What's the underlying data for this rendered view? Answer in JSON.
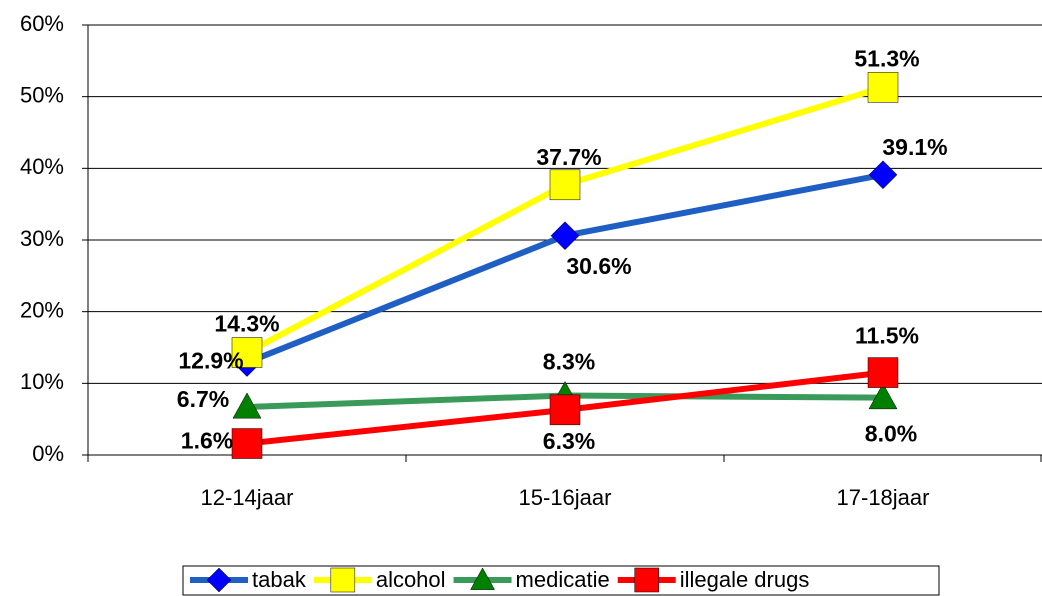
{
  "chart_data": {
    "type": "line",
    "categories": [
      "12-14jaar",
      "15-16jaar",
      "17-18jaar"
    ],
    "series": [
      {
        "name": "tabak",
        "color": "#1f5fc4",
        "marker_color": "#0000ff",
        "marker": "diamond",
        "values": [
          12.9,
          30.6,
          39.1
        ],
        "value_labels": [
          "12.9%",
          "30.6%",
          "39.1%"
        ]
      },
      {
        "name": "alcohol",
        "color": "#ffff00",
        "marker_color": "#ffff00",
        "marker": "square",
        "values": [
          14.3,
          37.7,
          51.3
        ],
        "value_labels": [
          "14.3%",
          "37.7%",
          "51.3%"
        ]
      },
      {
        "name": "medicatie",
        "color": "#3a9a5a",
        "marker_color": "#008000",
        "marker": "triangle",
        "values": [
          6.7,
          8.3,
          8.0
        ],
        "value_labels": [
          "6.7%",
          "8.3%",
          "8.0%"
        ]
      },
      {
        "name": "illegale drugs",
        "color": "#ff0000",
        "marker_color": "#ff0000",
        "marker": "square",
        "values": [
          1.6,
          6.3,
          11.5
        ],
        "value_labels": [
          "1.6%",
          "6.3%",
          "11.5%"
        ]
      }
    ],
    "ylim": [
      0,
      60
    ],
    "yticks": [
      {
        "value": 0,
        "label": "0%"
      },
      {
        "value": 10,
        "label": "10%"
      },
      {
        "value": 20,
        "label": "20%"
      },
      {
        "value": 30,
        "label": "30%"
      },
      {
        "value": 40,
        "label": "40%"
      },
      {
        "value": 50,
        "label": "50%"
      },
      {
        "value": 60,
        "label": "60%"
      }
    ],
    "grid": true,
    "legend": "bottom"
  }
}
